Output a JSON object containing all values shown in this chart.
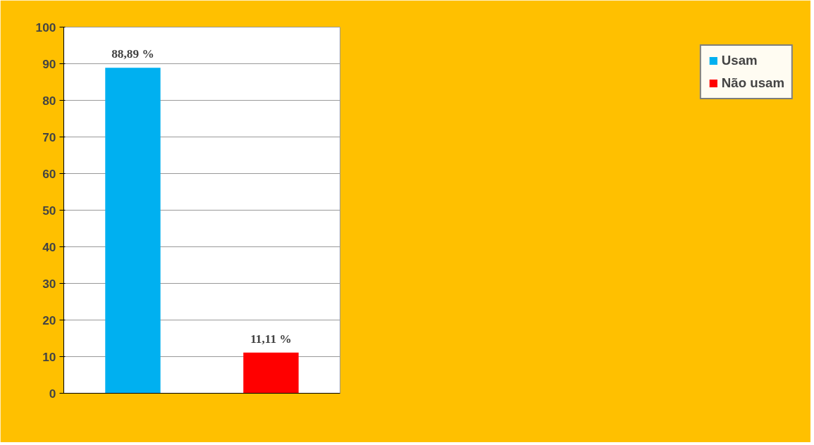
{
  "chart_data": {
    "type": "bar",
    "categories": [
      null,
      null
    ],
    "series": [
      {
        "name": "Usam",
        "color": "#00b0f0",
        "values": [
          88.89,
          null
        ],
        "value_labels": [
          "88,89 %",
          null
        ]
      },
      {
        "name": "Não usam",
        "color": "#ff0000",
        "values": [
          null,
          11.11
        ],
        "value_labels": [
          null,
          "11,11 %"
        ]
      }
    ],
    "ylim": [
      0,
      100
    ],
    "yticks": [
      0,
      10,
      20,
      30,
      40,
      50,
      60,
      70,
      80,
      90,
      100
    ],
    "grid": "y",
    "legend": "right"
  }
}
